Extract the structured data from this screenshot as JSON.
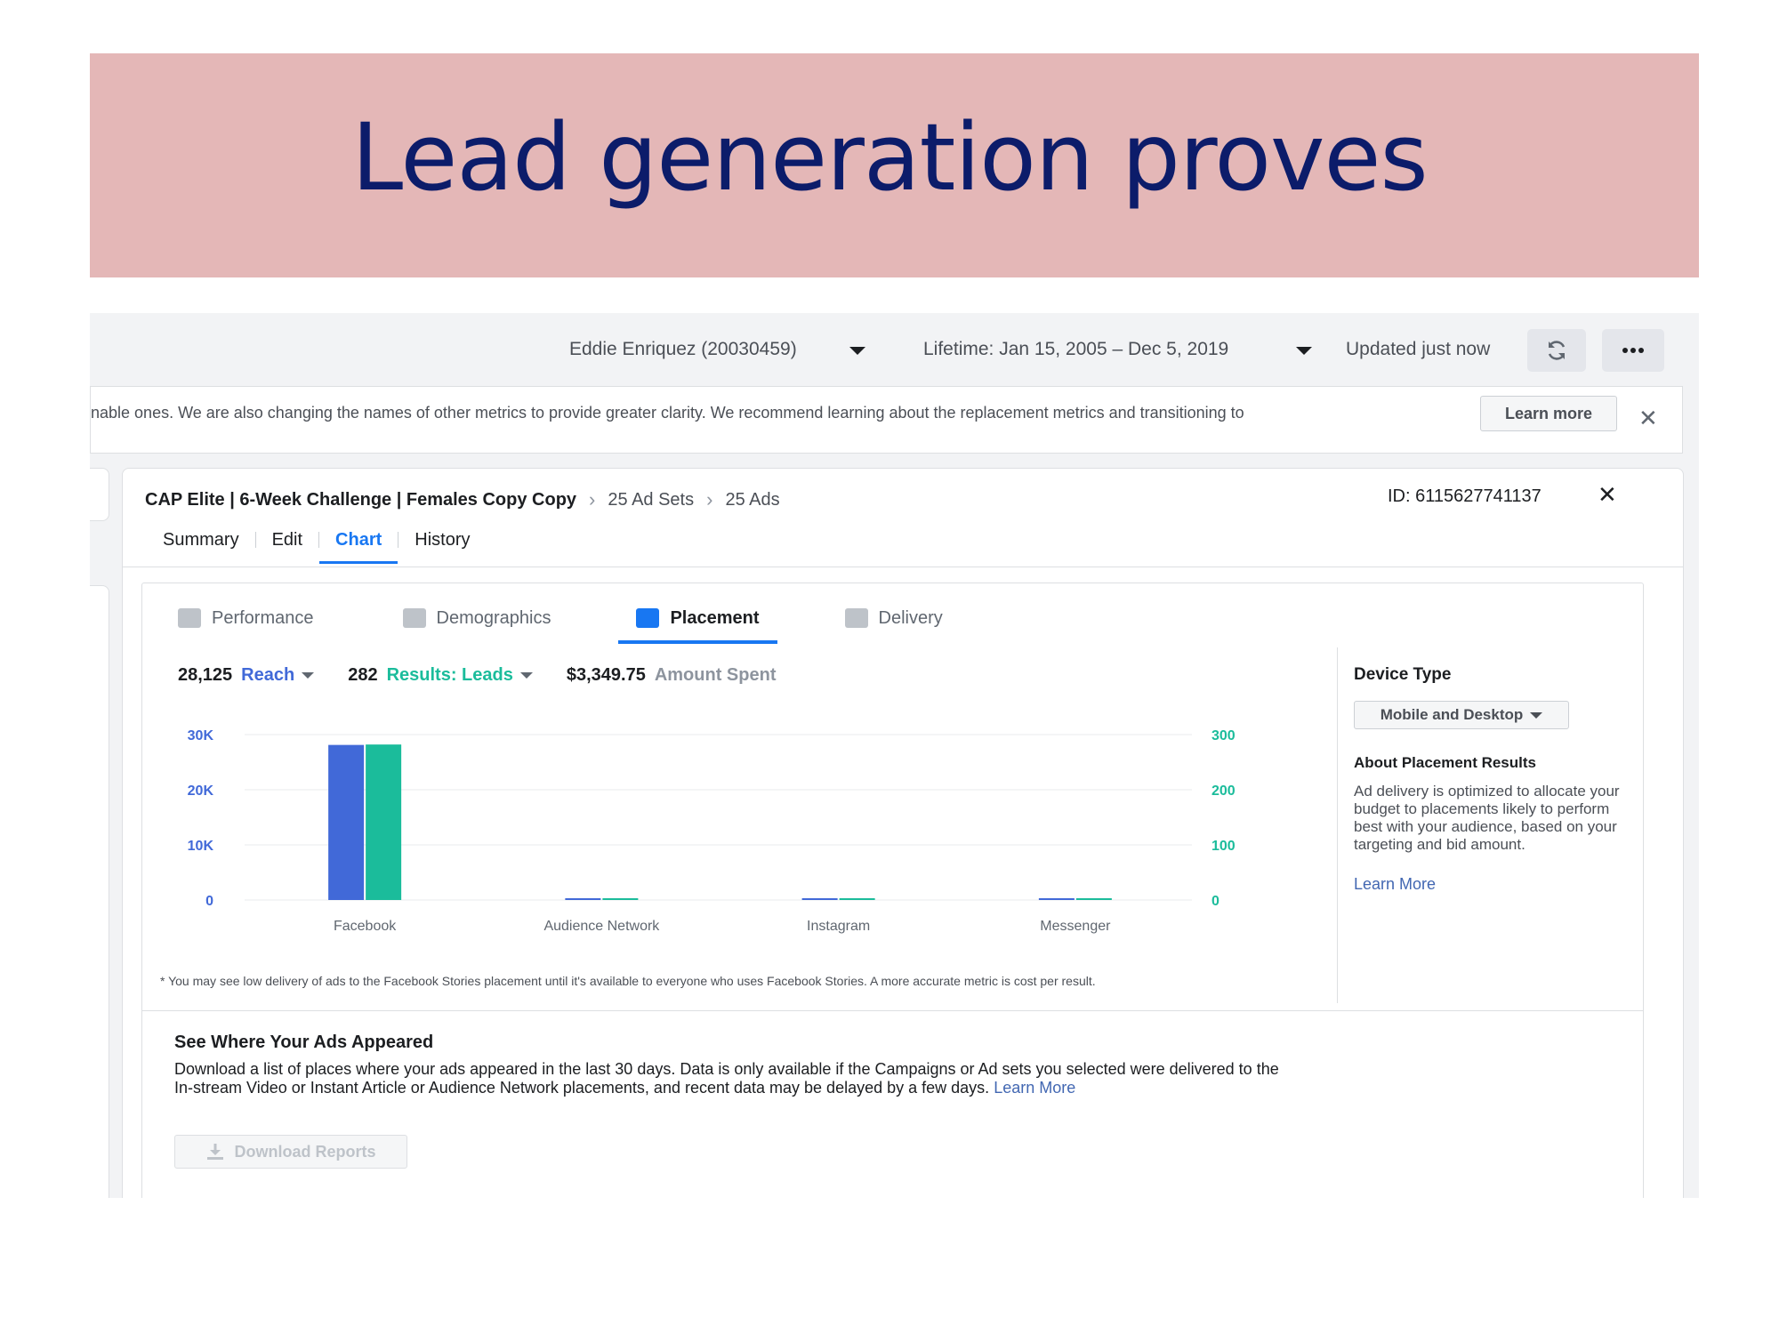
{
  "slide": {
    "title": "Lead generation proves"
  },
  "topbar": {
    "account": "Eddie Enriquez (20030459)",
    "date_range": "Lifetime: Jan 15, 2005 – Dec 5, 2019",
    "updated": "Updated just now",
    "refresh_icon": "refresh-icon",
    "more_icon": "more-icon"
  },
  "notice": {
    "text": "nable ones. We are also changing the names of other metrics to provide greater clarity. We recommend learning about the replacement metrics and transitioning to",
    "learn_more": "Learn more"
  },
  "breadcrumb": {
    "campaign": "CAP Elite | 6-Week Challenge | Females Copy Copy",
    "ad_sets": "25 Ad Sets",
    "ads": "25 Ads"
  },
  "ad_id": "ID: 6115627741137",
  "tabs": [
    "Summary",
    "Edit",
    "Chart",
    "History"
  ],
  "active_tab": "Chart",
  "subtabs": [
    "Performance",
    "Demographics",
    "Placement",
    "Delivery"
  ],
  "active_subtab": "Placement",
  "metrics": {
    "reach_value": "28,125",
    "reach_label": "Reach",
    "results_value": "282",
    "results_label": "Results: Leads",
    "spent_value": "$3,349.75",
    "spent_label": "Amount Spent"
  },
  "colors": {
    "reach": "#4169d8",
    "results": "#1bbc9b",
    "link": "#1877f2"
  },
  "chart_data": {
    "type": "bar",
    "categories": [
      "Facebook",
      "Audience Network",
      "Instagram",
      "Messenger"
    ],
    "series": [
      {
        "name": "Reach",
        "axis": "left",
        "values": [
          28125,
          0,
          0,
          0
        ]
      },
      {
        "name": "Results: Leads",
        "axis": "right",
        "values": [
          282,
          0,
          0,
          0
        ]
      }
    ],
    "left_ticks": [
      "0",
      "10K",
      "20K",
      "30K"
    ],
    "right_ticks": [
      "0",
      "100",
      "200",
      "300"
    ],
    "ylim_left": [
      0,
      30000
    ],
    "ylim_right": [
      0,
      300
    ],
    "grid": true
  },
  "side": {
    "device_title": "Device Type",
    "device_value": "Mobile and Desktop",
    "about_title": "About Placement Results",
    "about_text": "Ad delivery is optimized to allocate your budget to placements likely to perform best with your audience, based on your targeting and bid amount.",
    "learn_more": "Learn More"
  },
  "footnote": "* You may see low delivery of ads to the Facebook Stories placement until it's available to everyone who uses Facebook Stories. A more accurate metric is cost per result.",
  "see_where": {
    "title": "See Where Your Ads Appeared",
    "text": "Download a list of places where your ads appeared in the last 30 days. Data is only available if the Campaigns or Ad sets you selected were delivered to the In-stream Video or Instant Article or Audience Network placements, and recent data may be delayed by a few days.",
    "learn_more": "Learn More",
    "download": "Download Reports"
  }
}
